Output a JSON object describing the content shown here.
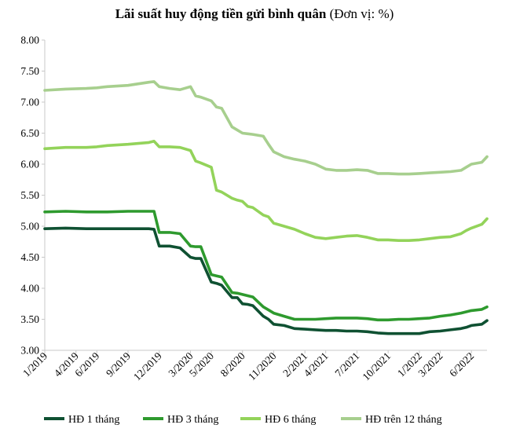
{
  "title": {
    "main": "Lãi suất huy động tiền gửi bình quân",
    "unit": "(Đơn vị: %)"
  },
  "colors": {
    "hd_1": "#0f5132",
    "hd_3": "#2e9a2e",
    "hd_6": "#93d35a",
    "hd_12": "#a7cf8e",
    "axis": "#c8c8c8"
  },
  "chart_data": {
    "type": "line",
    "title": "Lãi suất huy động tiền gửi bình quân (Đơn vị: %)",
    "ylim": [
      3.0,
      8.0
    ],
    "y_ticks": [
      "3.00",
      "3.50",
      "4.00",
      "4.50",
      "5.00",
      "5.50",
      "6.00",
      "6.50",
      "7.00",
      "7.50",
      "8.00"
    ],
    "x_tick_labels": [
      "1/2019",
      "4/2019",
      "6/2019",
      "9/2019",
      "12/2019",
      "3/2020",
      "5/2020",
      "8/2020",
      "11/2020",
      "2/2021",
      "4/2021",
      "7/2021",
      "10/2021",
      "1/2022",
      "3/2022",
      "6/2022"
    ],
    "x_tick_months": [
      0,
      3,
      5,
      8,
      11,
      14,
      16,
      19,
      22,
      25,
      27,
      30,
      33,
      36,
      38,
      41
    ],
    "grid": false,
    "legend_position": "bottom",
    "x_months": [
      0,
      2,
      4,
      5,
      6,
      8,
      10,
      10.5,
      11,
      12,
      13,
      14,
      14.5,
      15,
      16,
      16.5,
      17,
      18,
      18.5,
      19,
      19.5,
      20,
      21,
      21.5,
      22,
      23,
      24,
      25,
      26,
      27,
      28,
      29,
      30,
      31,
      32,
      33,
      34,
      35,
      36,
      37,
      38,
      39,
      40,
      40.5,
      41,
      42,
      42.5
    ],
    "series": [
      {
        "name": "HĐ 1 tháng",
        "values": [
          4.96,
          4.97,
          4.96,
          4.96,
          4.96,
          4.96,
          4.96,
          4.95,
          4.68,
          4.68,
          4.65,
          4.5,
          4.48,
          4.48,
          4.1,
          4.08,
          4.05,
          3.85,
          3.85,
          3.75,
          3.74,
          3.72,
          3.55,
          3.5,
          3.42,
          3.4,
          3.35,
          3.34,
          3.33,
          3.32,
          3.32,
          3.31,
          3.31,
          3.3,
          3.28,
          3.27,
          3.27,
          3.27,
          3.27,
          3.3,
          3.31,
          3.33,
          3.35,
          3.37,
          3.4,
          3.42,
          3.48
        ]
      },
      {
        "name": "HĐ 3 tháng",
        "values": [
          5.23,
          5.24,
          5.23,
          5.23,
          5.23,
          5.24,
          5.24,
          5.24,
          4.9,
          4.9,
          4.88,
          4.68,
          4.67,
          4.67,
          4.22,
          4.2,
          4.18,
          3.93,
          3.92,
          3.9,
          3.88,
          3.86,
          3.7,
          3.65,
          3.6,
          3.55,
          3.5,
          3.5,
          3.5,
          3.51,
          3.52,
          3.52,
          3.52,
          3.51,
          3.49,
          3.49,
          3.5,
          3.5,
          3.51,
          3.52,
          3.55,
          3.57,
          3.6,
          3.62,
          3.64,
          3.66,
          3.7
        ]
      },
      {
        "name": "HĐ 6 tháng",
        "values": [
          6.25,
          6.27,
          6.27,
          6.28,
          6.3,
          6.32,
          6.35,
          6.37,
          6.28,
          6.28,
          6.27,
          6.22,
          6.05,
          6.02,
          5.95,
          5.58,
          5.55,
          5.45,
          5.42,
          5.4,
          5.32,
          5.3,
          5.18,
          5.15,
          5.05,
          5.0,
          4.95,
          4.88,
          4.82,
          4.8,
          4.82,
          4.84,
          4.85,
          4.82,
          4.78,
          4.78,
          4.77,
          4.77,
          4.78,
          4.8,
          4.82,
          4.83,
          4.88,
          4.93,
          4.97,
          5.03,
          5.12
        ]
      },
      {
        "name": "HĐ trên 12 tháng",
        "values": [
          7.19,
          7.21,
          7.22,
          7.23,
          7.25,
          7.27,
          7.32,
          7.33,
          7.25,
          7.22,
          7.2,
          7.25,
          7.1,
          7.08,
          7.02,
          6.92,
          6.9,
          6.6,
          6.55,
          6.5,
          6.49,
          6.48,
          6.45,
          6.32,
          6.2,
          6.12,
          6.08,
          6.05,
          6.0,
          5.92,
          5.9,
          5.9,
          5.91,
          5.9,
          5.85,
          5.85,
          5.84,
          5.84,
          5.85,
          5.86,
          5.87,
          5.88,
          5.9,
          5.95,
          6.0,
          6.03,
          6.12
        ]
      }
    ]
  }
}
